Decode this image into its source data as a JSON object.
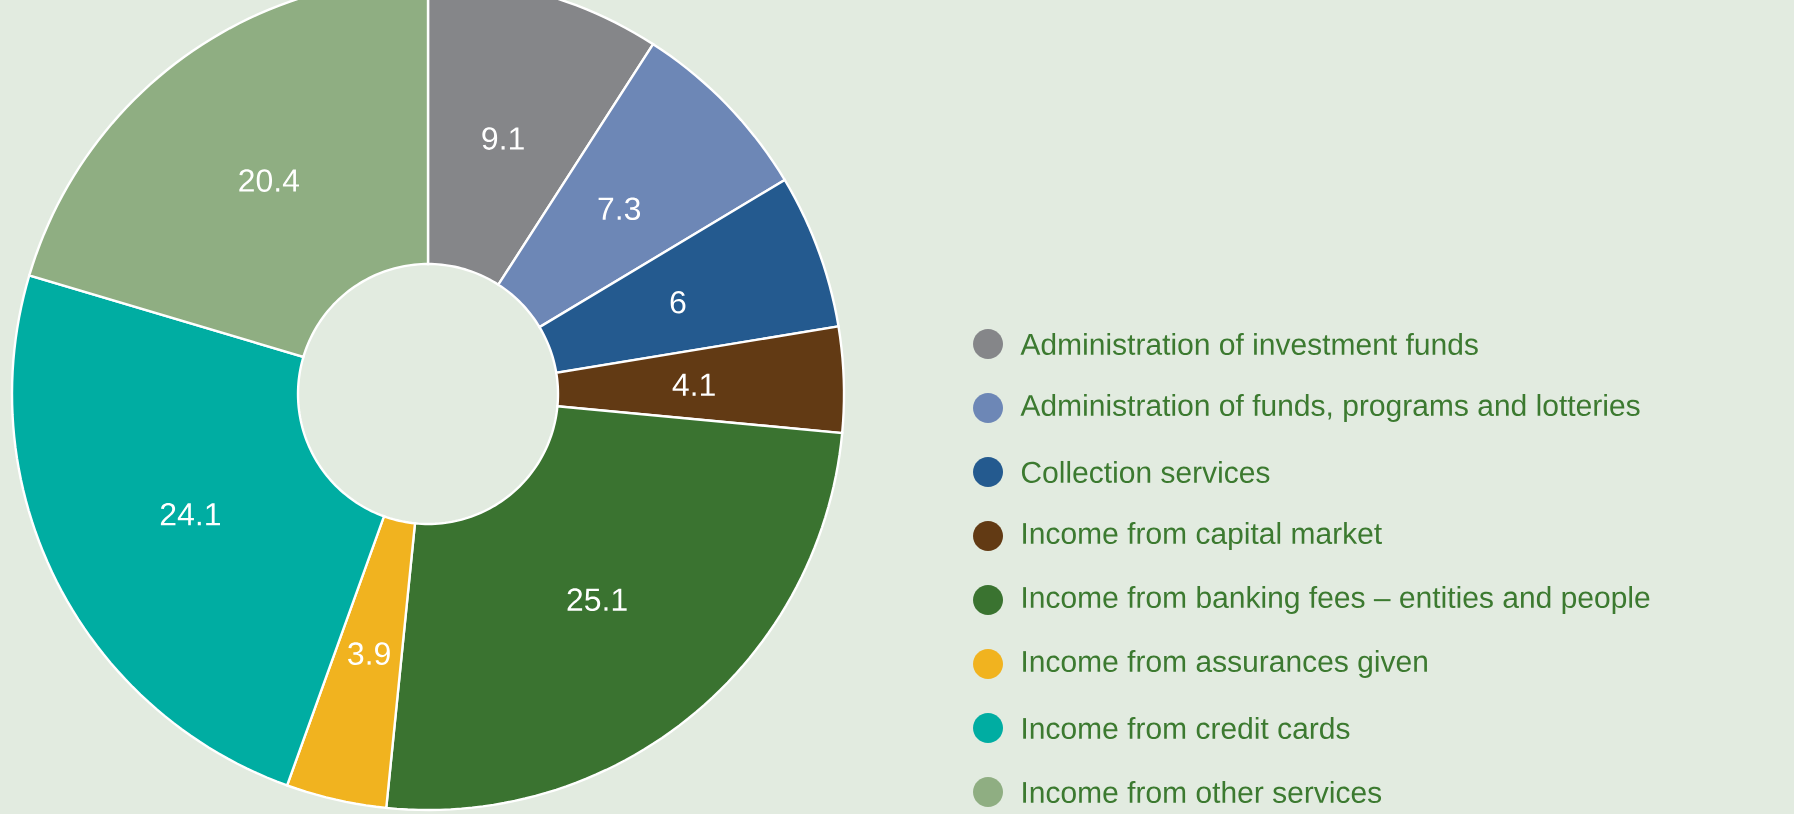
{
  "chart_data": {
    "type": "donut",
    "categories": [
      "Administration of investment funds",
      "Administration of funds, programs and lotteries",
      "Collection services",
      "Income from capital market",
      "Income from banking fees – entities and people",
      "Income from assurances given",
      "Income from credit cards",
      "Income from other services"
    ],
    "values": [
      9.1,
      7.3,
      6,
      4.1,
      25.1,
      3.9,
      24.1,
      20.4
    ],
    "colors": [
      "#858689",
      "#6d87b6",
      "#245a8f",
      "#623a14",
      "#3a7330",
      "#f1b31f",
      "#00ada2",
      "#8fae82"
    ],
    "data_labels": true,
    "legend": "right"
  }
}
